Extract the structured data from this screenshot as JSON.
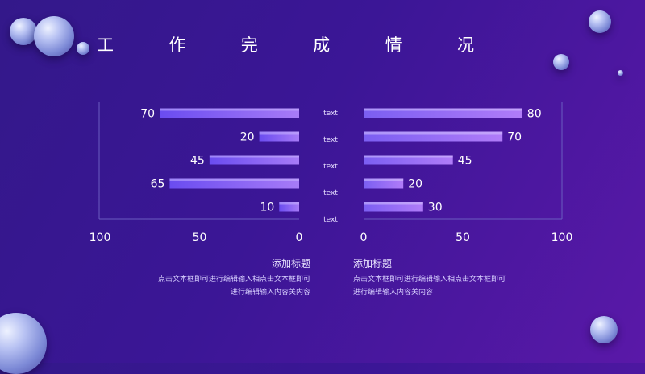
{
  "title_chars": [
    "工",
    "作",
    "完",
    "成",
    "情",
    "况"
  ],
  "chart_data": [
    {
      "type": "bar",
      "orientation": "horizontal",
      "direction": "right-to-left",
      "categories": [
        "text",
        "text",
        "text",
        "text",
        "text"
      ],
      "values": [
        70,
        20,
        45,
        65,
        10
      ],
      "xlim": [
        0,
        100
      ],
      "xticks": [
        "100",
        "50",
        "0"
      ],
      "bar_color": "#7b5cf0"
    },
    {
      "type": "bar",
      "orientation": "horizontal",
      "direction": "left-to-right",
      "categories": [
        "text",
        "text",
        "text",
        "text",
        "text"
      ],
      "values": [
        80,
        70,
        45,
        20,
        30
      ],
      "xlim": [
        0,
        100
      ],
      "xticks": [
        "0",
        "50",
        "100"
      ],
      "bar_color": "#a06bf5"
    }
  ],
  "captions": {
    "left": {
      "title": "添加标题",
      "line1": "点击文本框即可进行编辑输入相点击文本框即可",
      "line2": "进行编辑输入内容关内容"
    },
    "right": {
      "title": "添加标题",
      "line1": "点击文本框即可进行编辑输入相点击文本框即可",
      "line2": "进行编辑输入内容关内容"
    }
  },
  "colors": {
    "background": "#3b1696",
    "bar_left": "#7b5cf0",
    "bar_right": "#a06bf5",
    "axis": "#6a5cc0"
  }
}
